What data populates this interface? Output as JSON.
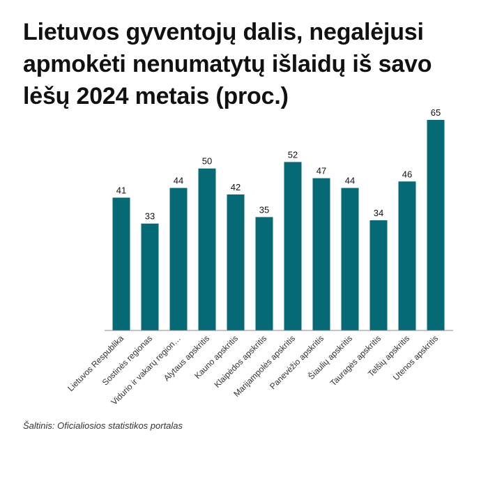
{
  "chart_data": {
    "type": "bar",
    "title": "Lietuvos gyventojų dalis, negalėjusi apmokėti nenumatytų išlaidų iš savo lėšų 2024 metais (proc.)",
    "xlabel": "",
    "ylabel": "",
    "categories": [
      "Lietuvos Respublika",
      "Sostinės regionas",
      "Vidurio ir vakarų region…",
      "Alytaus apskritis",
      "Kauno apskritis",
      "Klaipėdos apskritis",
      "Marijampolės apskritis",
      "Panevėžio apskritis",
      "Šiaulių apskritis",
      "Tauragės apskritis",
      "Telšių apskritis",
      "Utenos apskritis"
    ],
    "values": [
      41,
      33,
      44,
      50,
      42,
      35,
      52,
      47,
      44,
      34,
      46,
      65
    ],
    "ylim": [
      0,
      65
    ],
    "grid": false,
    "bar_color": "#056a75"
  },
  "source": "Šaltinis: Oficialiosios statistikos portalas"
}
